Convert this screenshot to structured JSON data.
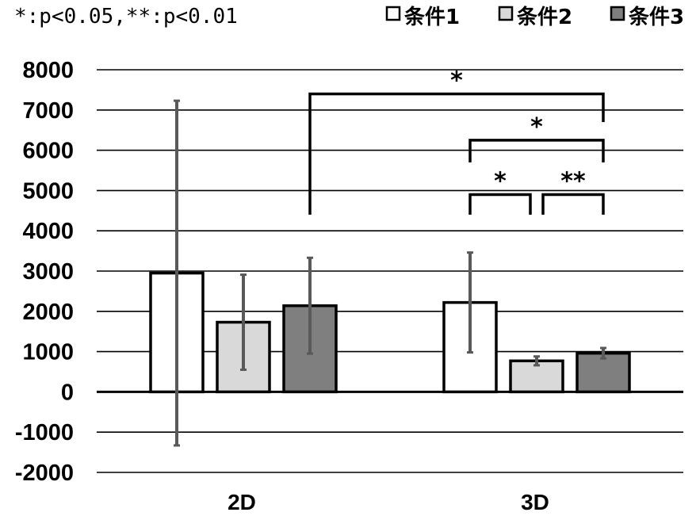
{
  "chart_data": {
    "type": "bar",
    "categories": [
      "2D",
      "3D"
    ],
    "series": [
      {
        "name": "条件1",
        "values": [
          2950,
          2220
        ],
        "errors": [
          4280,
          1240
        ],
        "color": "#ffffff"
      },
      {
        "name": "条件2",
        "values": [
          1730,
          770
        ],
        "errors": [
          1180,
          110
        ],
        "color": "#d9d9d9"
      },
      {
        "name": "条件3",
        "values": [
          2140,
          960
        ],
        "errors": [
          1190,
          130
        ],
        "color": "#7f7f7f"
      }
    ],
    "ylim": [
      -2000,
      8000
    ],
    "yticks": [
      "8000",
      "7000",
      "6000",
      "5000",
      "4000",
      "3000",
      "2000",
      "1000",
      "0",
      "-1000",
      "-2000"
    ],
    "grid": true,
    "legend_position": "top-right",
    "note": "*:p<0.05,**:p<0.01",
    "significance": [
      {
        "label": "*",
        "left": {
          "category": 0,
          "series": 2
        },
        "right": {
          "category": 1,
          "series": 2
        },
        "level": 7400,
        "left_drop": 4400,
        "right_drop": 6700
      },
      {
        "label": "*",
        "left": {
          "category": 1,
          "series": 0
        },
        "right": {
          "category": 1,
          "series": 2
        },
        "level": 6250,
        "left_drop": 5700,
        "right_drop": 5700
      },
      {
        "label": "*",
        "left": {
          "category": 1,
          "series": 0
        },
        "right": {
          "category": 1,
          "series": 1
        },
        "level": 4900,
        "left_drop": 4400,
        "right_drop": 4400
      },
      {
        "label": "**",
        "left": {
          "category": 1,
          "series": 1
        },
        "right": {
          "category": 1,
          "series": 2
        },
        "level": 4900,
        "left_drop": 4400,
        "right_drop": 4400
      }
    ]
  }
}
